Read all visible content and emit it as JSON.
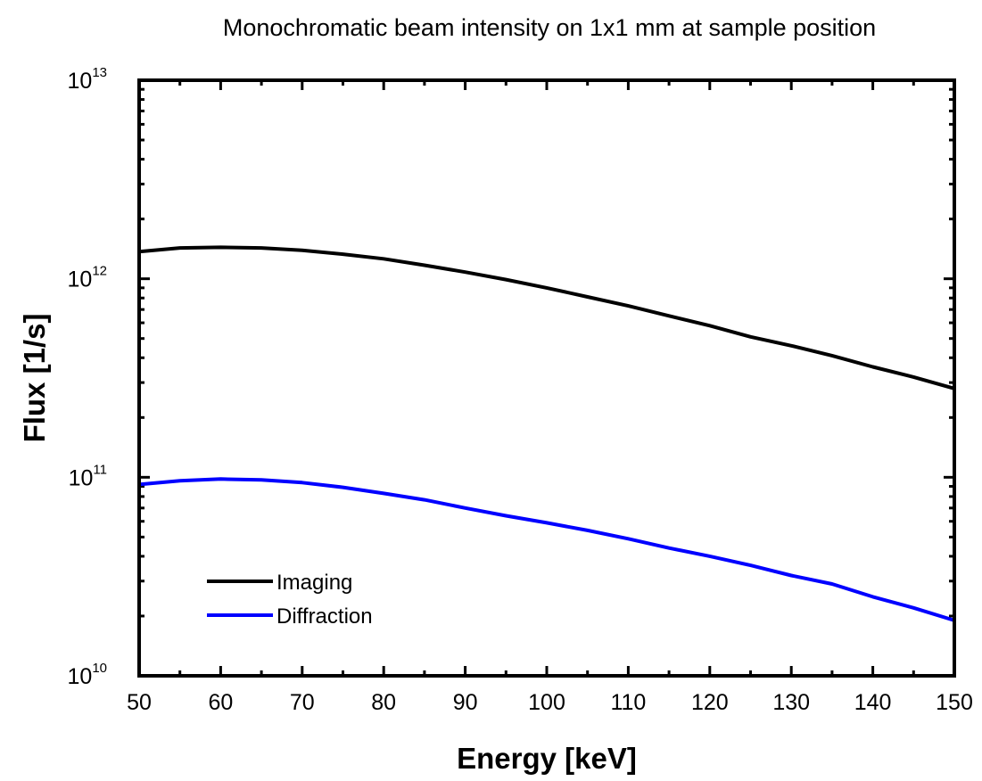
{
  "chart_data": {
    "type": "line",
    "title": "Monochromatic beam intensity on 1x1 mm at sample position",
    "xlabel": "Energy [keV]",
    "ylabel": "Flux [1/s]",
    "xlim": [
      50,
      150
    ],
    "ylim": [
      10000000000.0,
      10000000000000.0
    ],
    "yscale": "log",
    "grid": false,
    "legend_position": "bottom-left",
    "x_ticks": [
      "50",
      "60",
      "70",
      "80",
      "90",
      "100",
      "110",
      "120",
      "130",
      "140",
      "150"
    ],
    "y_ticks": [
      {
        "base": "10",
        "exp": "10"
      },
      {
        "base": "10",
        "exp": "11"
      },
      {
        "base": "10",
        "exp": "12"
      },
      {
        "base": "10",
        "exp": "13"
      }
    ],
    "series": [
      {
        "name": "Imaging",
        "color": "#000000",
        "x": [
          50,
          55,
          60,
          65,
          70,
          75,
          80,
          85,
          90,
          95,
          100,
          105,
          110,
          115,
          120,
          125,
          130,
          135,
          140,
          145,
          150
        ],
        "y": [
          1370000000000.0,
          1430000000000.0,
          1440000000000.0,
          1430000000000.0,
          1390000000000.0,
          1330000000000.0,
          1260000000000.0,
          1170000000000.0,
          1080000000000.0,
          990000000000.0,
          900000000000.0,
          810000000000.0,
          730000000000.0,
          650000000000.0,
          580000000000.0,
          510000000000.0,
          460000000000.0,
          410000000000.0,
          360000000000.0,
          320000000000.0,
          280000000000.0
        ]
      },
      {
        "name": "Diffraction",
        "color": "#0000ff",
        "x": [
          50,
          55,
          60,
          65,
          70,
          75,
          80,
          85,
          90,
          95,
          100,
          105,
          110,
          115,
          120,
          125,
          130,
          135,
          140,
          145,
          150
        ],
        "y": [
          92000000000.0,
          96000000000.0,
          98000000000.0,
          97000000000.0,
          94000000000.0,
          89000000000.0,
          83000000000.0,
          77000000000.0,
          70000000000.0,
          64000000000.0,
          59000000000.0,
          54000000000.0,
          49000000000.0,
          44000000000.0,
          40000000000.0,
          36000000000.0,
          32000000000.0,
          29000000000.0,
          25000000000.0,
          22000000000.0,
          19000000000.0
        ]
      }
    ]
  }
}
